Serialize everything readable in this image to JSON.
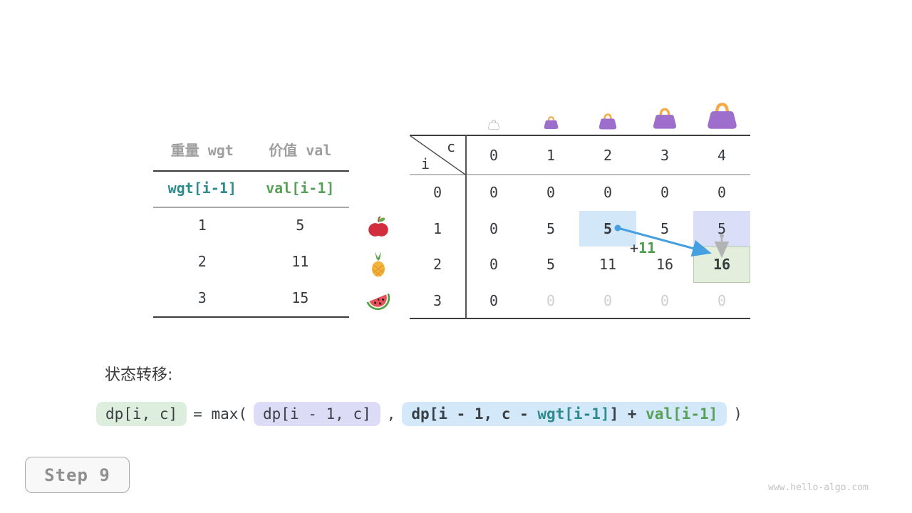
{
  "items_table": {
    "headers": [
      "重量 wgt",
      "价值 val"
    ],
    "index_row": [
      "wgt[i-1]",
      "val[i-1]"
    ],
    "rows": [
      [
        "1",
        "5"
      ],
      [
        "2",
        "11"
      ],
      [
        "3",
        "15"
      ]
    ],
    "fruit_icons": [
      "apple-icon",
      "pineapple-icon",
      "watermelon-icon"
    ]
  },
  "dp_table": {
    "corner": {
      "col_var": "c",
      "row_var": "i"
    },
    "col_headers": [
      "0",
      "1",
      "2",
      "3",
      "4"
    ],
    "row_headers": [
      "0",
      "1",
      "2",
      "3"
    ],
    "rows": [
      [
        "0",
        "0",
        "0",
        "0",
        "0"
      ],
      [
        "0",
        "5",
        "5",
        "5",
        "5"
      ],
      [
        "0",
        "5",
        "11",
        "16",
        "16"
      ],
      [
        "0",
        "0",
        "0",
        "0",
        "0"
      ]
    ],
    "highlights": [
      {
        "row": 1,
        "col": 2,
        "type": "blue",
        "bold": true
      },
      {
        "row": 1,
        "col": 4,
        "type": "purple",
        "bold": false
      },
      {
        "row": 2,
        "col": 4,
        "type": "green",
        "bold": true
      }
    ],
    "muted_cells": [
      {
        "row": 3,
        "cols": [
          1,
          2,
          3,
          4
        ]
      }
    ],
    "bag_icons": [
      "handbag-outline-icon",
      "handbag-icon",
      "handbag-icon",
      "handbag-icon",
      "handbag-icon"
    ]
  },
  "annotation": {
    "plus": "+",
    "value": "11"
  },
  "transition": {
    "label": "状态转移:",
    "lhs": "dp[i, c]",
    "eq": "= max(",
    "option1": "dp[i - 1, c]",
    "comma": ",",
    "option2_prefix": "dp[i - 1, c - ",
    "option2_wgt": "wgt[i-1]",
    "option2_mid": "] + ",
    "option2_val": "val[i-1]",
    "close": ")"
  },
  "step_badge": "Step 9",
  "watermark": "www.hello-algo.com",
  "colors": {
    "highlight_blue": "#d2e8f8",
    "highlight_purple": "#dadef6",
    "highlight_green": "#e3efdc",
    "arrow_blue": "#459fe0",
    "arrow_gray": "#b3b3b3",
    "accent_teal": "#2e8b8b",
    "accent_green": "#57a157",
    "bag_purple": "#9d6ecb",
    "bag_handle": "#f3ab45"
  }
}
